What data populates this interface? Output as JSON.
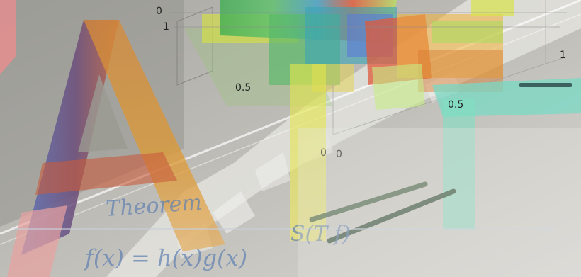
{
  "scene": {
    "ticks": {
      "t0_top": "0",
      "t1_top": "1",
      "t05_left": "0.5",
      "t0_bottom_a": "0",
      "t0_bottom_b": "0",
      "t05_right": "0.5",
      "t1_right": "1"
    },
    "handwriting": {
      "line1": "Theorem",
      "line2": "f(x) = h(x)g(x)",
      "line3": "S(T f)"
    },
    "colors": {
      "background": "#bcbab3",
      "letter_a_left": "#5562a6",
      "letter_a_right": "#d7922e",
      "letter_a_bottom": "#e8a1a0",
      "letter_t_stem": "#e9df45",
      "letter_t_bar": "#79d9c4",
      "handwriting": "#5d7fb2",
      "chalk_light": "#eeeee8"
    },
    "icons": [
      "3d-plot-overlay",
      "letter-a-shape",
      "letter-t-shape",
      "hanging-chalk-stroke"
    ]
  }
}
